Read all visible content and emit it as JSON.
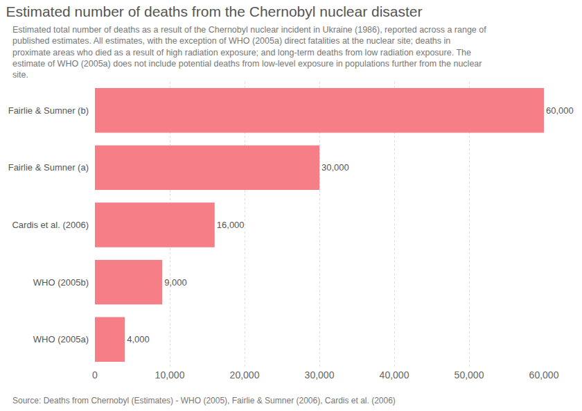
{
  "chart_data": {
    "type": "bar",
    "orientation": "horizontal",
    "title": "Estimated number of deaths from the Chernobyl nuclear disaster",
    "subtitle": "Estimated total number of deaths as a result of the Chernobyl nuclear incident in Ukraine (1986), reported across a range of published estimates. All estimates, with the exception of WHO (2005a) direct fatalities at the nuclear site; deaths in proximate areas who died as a result of high radiation exposure; and long-term deaths from low radiation exposure. The estimate of WHO (2005a) does not include potential deaths from low-level exposure in populations further from the nuclear site.",
    "source": "Source: Deaths from Chernobyl (Estimates) - WHO (2005), Fairlie & Sumner (2006), Cardis et al. (2006)",
    "categories": [
      "Fairlie & Sumner (b)",
      "Fairlie & Sumner (a)",
      "Cardis et al. (2006)",
      "WHO (2005b)",
      "WHO (2005a)"
    ],
    "values": [
      60000,
      30000,
      16000,
      9000,
      4000
    ],
    "value_labels": [
      "60,000",
      "30,000",
      "16,000",
      "9,000",
      "4,000"
    ],
    "data_labels": true,
    "color": "#f67e86",
    "xlim": [
      0,
      60000
    ],
    "xticks": [
      0,
      {
        "value": 10000,
        "label": "10,000"
      },
      {
        "value": 20000,
        "label": "20,000"
      },
      {
        "value": 30000,
        "label": "30,000"
      },
      {
        "value": 40000,
        "label": "40,000"
      },
      {
        "value": 50000,
        "label": "50,000"
      },
      {
        "value": 60000,
        "label": "60,000"
      }
    ],
    "grid": true
  }
}
